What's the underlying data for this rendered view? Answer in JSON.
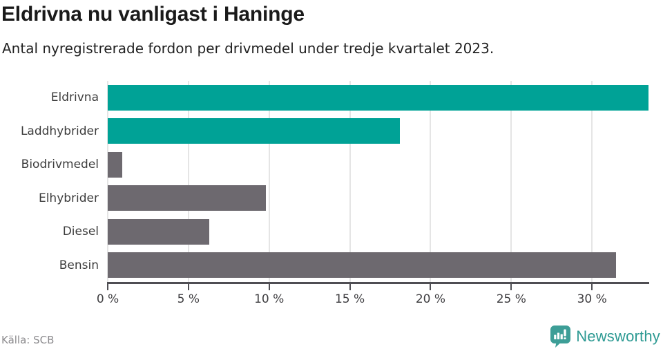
{
  "header": {
    "title": "Eldrivna nu vanligast i Haninge",
    "subtitle": "Antal nyregistrerade fordon per drivmedel under tredje kvartalet 2023."
  },
  "footer": {
    "source": "Källa: SCB",
    "brand": "Newsworthy"
  },
  "colors": {
    "teal": "#00a296",
    "gray": "#6d696f",
    "gridline": "#e5e5e5",
    "axis": "#4f4e53",
    "logo_teal": "#3d9e97",
    "brand_text": "#2d9a93"
  },
  "chart_data": {
    "type": "bar",
    "orientation": "horizontal",
    "title": "Eldrivna nu vanligast i Haninge",
    "subtitle": "Antal nyregistrerade fordon per drivmedel under tredje kvartalet 2023.",
    "categories": [
      "Eldrivna",
      "Laddhybrider",
      "Biodrivmedel",
      "Elhybrider",
      "Diesel",
      "Bensin"
    ],
    "values": [
      33.5,
      18.1,
      0.9,
      9.8,
      6.3,
      31.5
    ],
    "unit": "%",
    "bar_colors": [
      "#00a296",
      "#00a296",
      "#6d696f",
      "#6d696f",
      "#6d696f",
      "#6d696f"
    ],
    "xlim": [
      0,
      33.5
    ],
    "x_ticks": [
      0,
      5,
      10,
      15,
      20,
      25,
      30
    ],
    "x_tick_labels": [
      "0 %",
      "5 %",
      "10 %",
      "15 %",
      "20 %",
      "25 %",
      "30 %"
    ],
    "grid": true,
    "legend": "none",
    "source": "Källa: SCB"
  }
}
